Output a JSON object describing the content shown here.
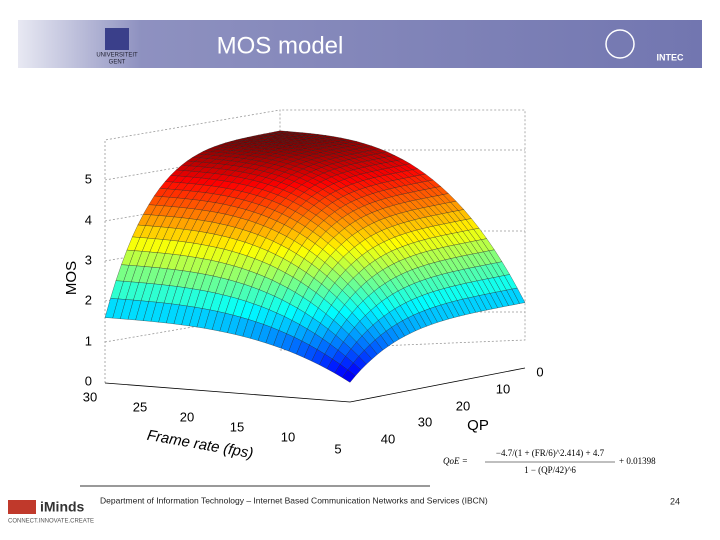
{
  "header": {
    "title": "MOS model",
    "left_logo": [
      "UNIVERSITEIT",
      "GENT"
    ],
    "right_logo": "INTEC"
  },
  "plot": {
    "z_axis_label": "MOS",
    "z_ticks": [
      "5",
      "4",
      "3",
      "2",
      "1",
      "0"
    ],
    "x_axis_label": "Frame rate (fps)",
    "x_ticks": [
      "30",
      "25",
      "20",
      "15",
      "10",
      "5"
    ],
    "y_axis_label": "QP",
    "y_ticks": [
      "0",
      "10",
      "20",
      "30",
      "40"
    ]
  },
  "formula": {
    "lhs": "QoE =",
    "numerator": "−4.7/(1 + (FR/6)^2.414) + 4.7",
    "denominator": "1 − (QP/42)^6",
    "tail": "+ 0.01398"
  },
  "footer": {
    "department": "Department of Information Technology – Internet Based Communication Networks and Services (IBCN)",
    "page": "24",
    "logo": "iMinds",
    "logo_sub": "CONNECT.INNOVATE.CREATE"
  }
}
